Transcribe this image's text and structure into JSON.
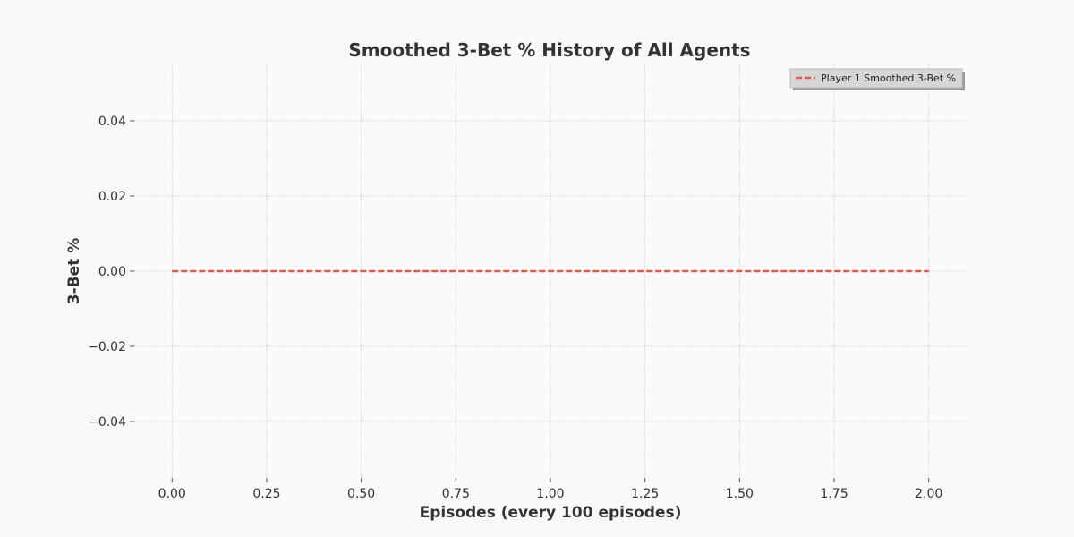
{
  "chart_data": {
    "type": "line",
    "title": "Smoothed 3-Bet % History of All Agents",
    "xlabel": "Episodes (every 100 episodes)",
    "ylabel": "3-Bet %",
    "xlim": [
      -0.1,
      2.1
    ],
    "ylim": [
      -0.055,
      0.055
    ],
    "x_ticks": [
      0.0,
      0.25,
      0.5,
      0.75,
      1.0,
      1.25,
      1.5,
      1.75,
      2.0
    ],
    "x_tick_labels": [
      "0.00",
      "0.25",
      "0.50",
      "0.75",
      "1.00",
      "1.25",
      "1.50",
      "1.75",
      "2.00"
    ],
    "y_ticks": [
      0.04,
      0.02,
      0.0,
      -0.02,
      -0.04
    ],
    "y_tick_labels": [
      "0.04",
      "0.02",
      "0.00",
      "−0.02",
      "−0.04"
    ],
    "grid": true,
    "legend_position": "top-right",
    "series": [
      {
        "name": "Player 1 Smoothed 3-Bet %",
        "color": "#e05a47",
        "line_style": "dashed",
        "x": [
          0,
          1,
          2
        ],
        "y": [
          0.0,
          0.0,
          0.0
        ]
      }
    ],
    "colors": {
      "background": "#f9f9f9",
      "plot_background": "#fafafa",
      "grid": "#c8c8c8",
      "text": "#333333",
      "legend_box": "#d6d6d6",
      "legend_shadow": "#999999"
    }
  }
}
